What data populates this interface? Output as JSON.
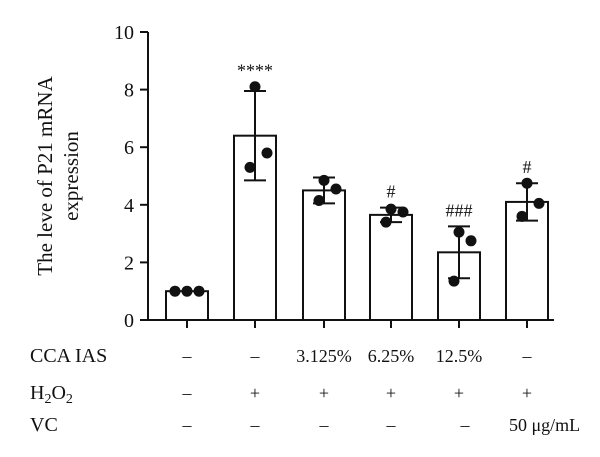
{
  "chart_data": {
    "type": "bar",
    "ylabel_lines": [
      "The leve of P21 mRNA",
      "expression"
    ],
    "ylim": [
      0,
      10
    ],
    "yticks": [
      "0",
      "2",
      "4",
      "6",
      "8",
      "10"
    ],
    "groups": [
      {
        "mean": 1.0,
        "sd": 0.0,
        "points": [
          1.0,
          1.0,
          1.0
        ],
        "significance": ""
      },
      {
        "mean": 6.4,
        "sd": 1.55,
        "points": [
          8.1,
          5.8,
          5.3
        ],
        "significance": "****"
      },
      {
        "mean": 4.5,
        "sd": 0.45,
        "points": [
          4.85,
          4.55,
          4.15
        ],
        "significance": ""
      },
      {
        "mean": 3.65,
        "sd": 0.25,
        "points": [
          3.85,
          3.75,
          3.4
        ],
        "significance": "#"
      },
      {
        "mean": 2.35,
        "sd": 0.9,
        "points": [
          3.05,
          2.75,
          1.35
        ],
        "significance": "###"
      },
      {
        "mean": 4.1,
        "sd": 0.65,
        "points": [
          4.75,
          4.05,
          3.6
        ],
        "significance": "#"
      }
    ],
    "conditions": [
      {
        "label": "CCA IAS",
        "values": [
          "–",
          "–",
          "3.125%",
          "6.25%",
          "12.5%",
          "–"
        ]
      },
      {
        "label": "H₂O₂",
        "values": [
          "–",
          "+",
          "+",
          "+",
          "+",
          "+"
        ]
      },
      {
        "label": "VC",
        "values": [
          "–",
          "–",
          "–",
          "–",
          "–",
          "50 μg/mL"
        ]
      }
    ],
    "grid": false
  }
}
